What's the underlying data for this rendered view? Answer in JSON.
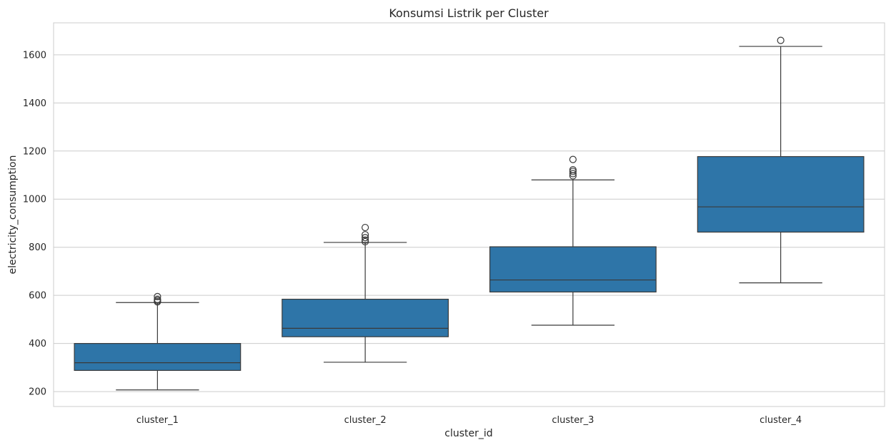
{
  "chart_data": {
    "type": "box",
    "title": "Konsumsi Listrik per Cluster",
    "xlabel": "cluster_id",
    "ylabel": "electricity_consumption",
    "categories": [
      "cluster_1",
      "cluster_2",
      "cluster_3",
      "cluster_4"
    ],
    "ylim": [
      138,
      1733
    ],
    "yticks": [
      200,
      400,
      600,
      800,
      1000,
      1200,
      1400,
      1600
    ],
    "grid": true,
    "box_color": "#2e75a8",
    "line_color": "#3a3a3a",
    "boxes": [
      {
        "name": "cluster_1",
        "whisker_low": 207,
        "q1": 288,
        "median": 320,
        "q3": 400,
        "whisker_high": 570,
        "outliers": [
          573,
          578,
          583,
          595
        ]
      },
      {
        "name": "cluster_2",
        "whisker_low": 322,
        "q1": 428,
        "median": 463,
        "q3": 584,
        "whisker_high": 820,
        "outliers": [
          823,
          830,
          840,
          852,
          882
        ]
      },
      {
        "name": "cluster_3",
        "whisker_low": 476,
        "q1": 614,
        "median": 664,
        "q3": 802,
        "whisker_high": 1080,
        "outliers": [
          1097,
          1106,
          1115,
          1122,
          1165
        ]
      },
      {
        "name": "cluster_4",
        "whisker_low": 652,
        "q1": 863,
        "median": 968,
        "q3": 1177,
        "whisker_high": 1635,
        "outliers": [
          1660
        ]
      }
    ]
  }
}
